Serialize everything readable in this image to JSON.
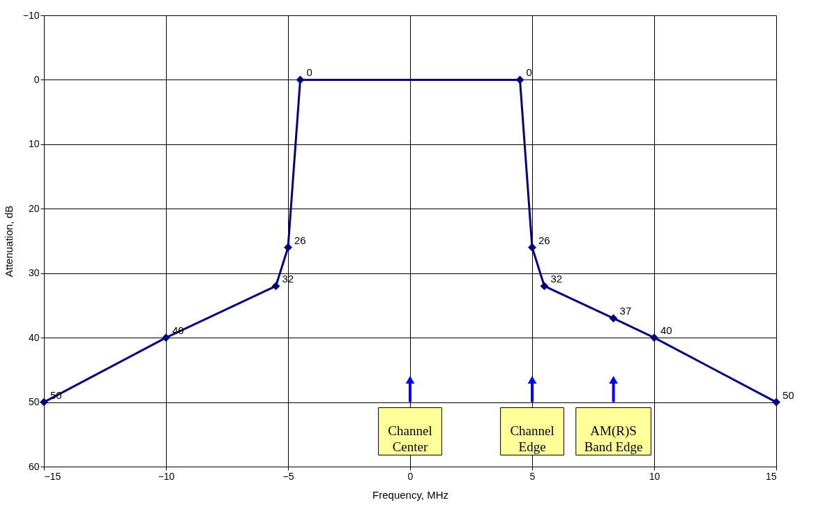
{
  "chart_data": {
    "type": "line",
    "xlabel": "Frequency, MHz",
    "ylabel": "Attenuation, dB",
    "x": [
      -15,
      -10,
      -5.5,
      -5,
      -4.5,
      4.5,
      5,
      5.5,
      8.33,
      10,
      15
    ],
    "series": [
      {
        "color": "#000080",
        "values": [
          50,
          40,
          32,
          26,
          0,
          0,
          26,
          32,
          37,
          40,
          50
        ]
      }
    ],
    "xlim": [
      -15,
      15
    ],
    "xticks": [
      -15,
      -10,
      -5,
      0,
      5,
      10,
      15
    ],
    "ylim": [
      60,
      -10
    ],
    "yticks": [
      -10,
      0,
      10,
      20,
      30,
      40,
      50,
      60
    ],
    "grid": true,
    "marker": "diamond",
    "line_style": "solid",
    "data_labels": true,
    "annotations": [
      "Channel\nCenter",
      "Channel\nEdge",
      "AM(R)S\nBand Edge"
    ]
  }
}
